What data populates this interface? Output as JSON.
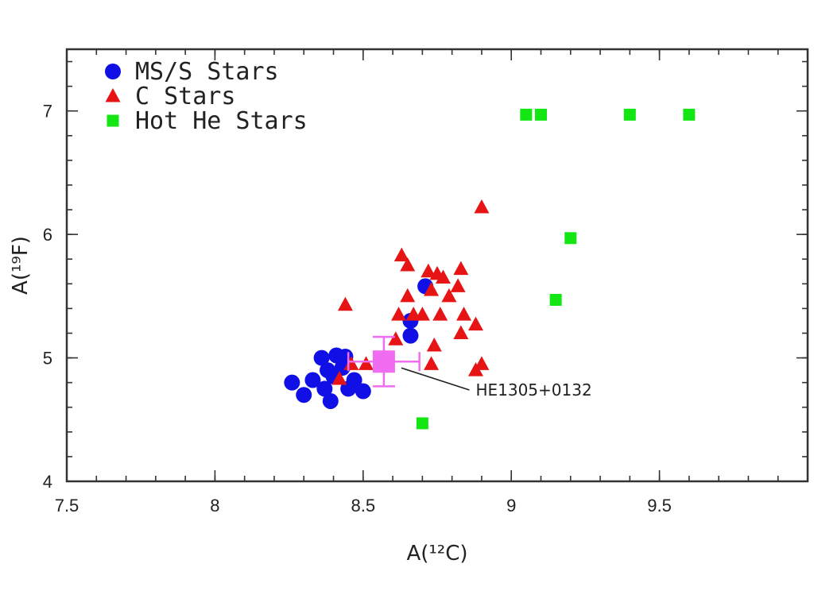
{
  "chart_data": {
    "type": "scatter",
    "xlabel": "A(¹²C)",
    "ylabel": "A(¹⁹F)",
    "xlim": [
      7.5,
      10.0
    ],
    "ylim": [
      4.0,
      7.5
    ],
    "x_ticks": [
      "7.5",
      "8",
      "8.5",
      "9",
      "9.5"
    ],
    "y_ticks": [
      "4",
      "5",
      "6",
      "7"
    ],
    "x_tick_values": [
      7.5,
      8.0,
      8.5,
      9.0,
      9.5
    ],
    "y_tick_values": [
      4,
      5,
      6,
      7
    ],
    "legend_position": "top-left",
    "grid": false,
    "series": [
      {
        "name": "MS/S Stars",
        "marker": "circle",
        "color": "#1010e6",
        "points": [
          [
            8.26,
            4.8
          ],
          [
            8.3,
            4.7
          ],
          [
            8.33,
            4.82
          ],
          [
            8.36,
            5.0
          ],
          [
            8.37,
            4.75
          ],
          [
            8.39,
            4.65
          ],
          [
            8.4,
            4.85
          ],
          [
            8.41,
            5.02
          ],
          [
            8.43,
            4.92
          ],
          [
            8.44,
            5.01
          ],
          [
            8.45,
            4.75
          ],
          [
            8.47,
            4.82
          ],
          [
            8.5,
            4.73
          ],
          [
            8.66,
            5.3
          ],
          [
            8.66,
            5.18
          ],
          [
            8.71,
            5.58
          ],
          [
            8.44,
            4.95
          ],
          [
            8.38,
            4.9
          ]
        ]
      },
      {
        "name": "C Stars",
        "marker": "triangle",
        "color": "#e61414",
        "points": [
          [
            8.42,
            4.83
          ],
          [
            8.44,
            5.43
          ],
          [
            8.46,
            4.95
          ],
          [
            8.51,
            4.95
          ],
          [
            8.61,
            5.15
          ],
          [
            8.62,
            5.35
          ],
          [
            8.63,
            5.83
          ],
          [
            8.65,
            5.5
          ],
          [
            8.65,
            5.75
          ],
          [
            8.67,
            5.35
          ],
          [
            8.7,
            5.35
          ],
          [
            8.72,
            5.7
          ],
          [
            8.73,
            5.55
          ],
          [
            8.73,
            4.95
          ],
          [
            8.74,
            5.1
          ],
          [
            8.75,
            5.68
          ],
          [
            8.76,
            5.35
          ],
          [
            8.77,
            5.65
          ],
          [
            8.79,
            5.5
          ],
          [
            8.82,
            5.58
          ],
          [
            8.83,
            5.72
          ],
          [
            8.83,
            5.2
          ],
          [
            8.84,
            5.35
          ],
          [
            8.88,
            5.27
          ],
          [
            8.88,
            4.9
          ],
          [
            8.9,
            4.95
          ],
          [
            8.9,
            6.22
          ]
        ]
      },
      {
        "name": "Hot He Stars",
        "marker": "square",
        "color": "#14e614",
        "points": [
          [
            9.05,
            6.97
          ],
          [
            9.1,
            6.97
          ],
          [
            9.4,
            6.97
          ],
          [
            9.6,
            6.97
          ],
          [
            9.2,
            5.97
          ],
          [
            9.15,
            5.47
          ],
          [
            8.7,
            4.47
          ]
        ]
      }
    ],
    "highlight": {
      "label": "HE1305+0132",
      "x": 8.57,
      "y": 4.97,
      "x_err": 0.12,
      "y_err": 0.2,
      "color": "#f06cf0",
      "label_x": 8.88,
      "label_y": 4.74
    }
  }
}
